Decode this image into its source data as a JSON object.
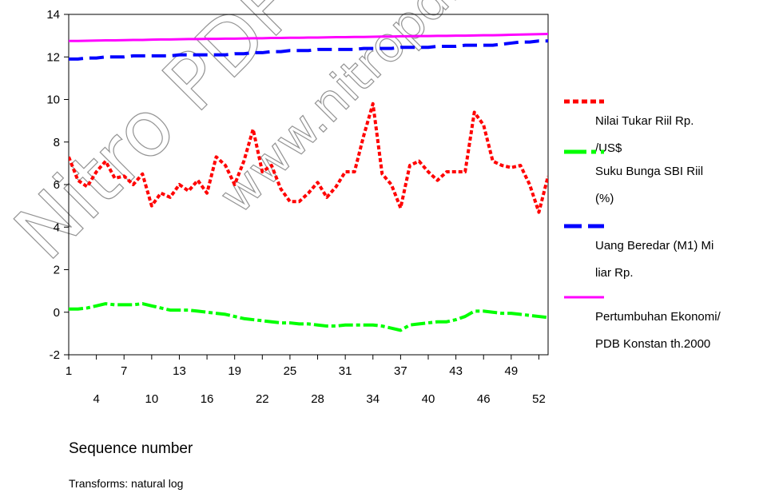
{
  "chart_data": {
    "type": "line",
    "x": [
      1,
      2,
      3,
      4,
      5,
      6,
      7,
      8,
      9,
      10,
      11,
      12,
      13,
      14,
      15,
      16,
      17,
      18,
      19,
      20,
      21,
      22,
      23,
      24,
      25,
      26,
      27,
      28,
      29,
      30,
      31,
      32,
      33,
      34,
      35,
      36,
      37,
      38,
      39,
      40,
      41,
      42,
      43,
      44,
      45,
      46,
      47,
      48,
      49,
      50,
      51,
      52,
      53
    ],
    "x_ticks_row1": [
      1,
      7,
      13,
      19,
      25,
      31,
      37,
      43,
      49
    ],
    "x_ticks_row2": [
      4,
      10,
      16,
      22,
      28,
      34,
      40,
      46,
      52
    ],
    "xlabel": "Sequence number",
    "ylim": [
      -2,
      14
    ],
    "y_ticks": [
      -2,
      0,
      2,
      4,
      6,
      8,
      10,
      12,
      14
    ],
    "note": "Transforms: natural log",
    "series": [
      {
        "name": "Nilai Tukar Riil Rp. /US$",
        "name_lines": [
          "Nilai Tukar Riil Rp.",
          "/US$"
        ],
        "color": "#ff0000",
        "style": "dotted",
        "values": [
          7.3,
          6.2,
          5.9,
          6.6,
          7.1,
          6.3,
          6.4,
          6.0,
          6.5,
          5.0,
          5.6,
          5.4,
          6.0,
          5.7,
          6.2,
          5.6,
          7.3,
          6.9,
          6.0,
          7.1,
          8.6,
          6.6,
          6.9,
          5.8,
          5.2,
          5.2,
          5.6,
          6.1,
          5.4,
          5.9,
          6.6,
          6.6,
          8.3,
          9.8,
          6.5,
          6.0,
          4.9,
          6.9,
          7.1,
          6.6,
          6.2,
          6.6,
          6.6,
          6.6,
          9.4,
          8.8,
          7.1,
          6.9,
          6.8,
          6.9,
          6.0,
          4.7,
          6.4
        ]
      },
      {
        "name": "Suku Bunga SBI Riil (%)",
        "name_lines": [
          "Suku Bunga SBI Riil",
          "(%)"
        ],
        "color": "#00ff00",
        "style": "dash-dot",
        "values": [
          0.15,
          0.15,
          0.2,
          0.3,
          0.4,
          0.35,
          0.35,
          0.35,
          0.4,
          0.3,
          0.2,
          0.1,
          0.1,
          0.1,
          0.05,
          0.0,
          -0.05,
          -0.1,
          -0.2,
          -0.3,
          -0.35,
          -0.4,
          -0.45,
          -0.5,
          -0.5,
          -0.55,
          -0.55,
          -0.6,
          -0.65,
          -0.65,
          -0.6,
          -0.6,
          -0.6,
          -0.6,
          -0.65,
          -0.75,
          -0.85,
          -0.6,
          -0.55,
          -0.5,
          -0.45,
          -0.45,
          -0.35,
          -0.2,
          0.05,
          0.05,
          0.0,
          -0.05,
          -0.05,
          -0.1,
          -0.15,
          -0.2,
          -0.25
        ]
      },
      {
        "name": "Uang Beredar (M1) Miliar Rp.",
        "name_lines": [
          "Uang Beredar (M1) Mi",
          "liar Rp."
        ],
        "color": "#0000ff",
        "style": "dashed",
        "values": [
          11.9,
          11.9,
          11.95,
          11.95,
          12.0,
          12.0,
          12.0,
          12.05,
          12.05,
          12.05,
          12.05,
          12.05,
          12.1,
          12.1,
          12.1,
          12.1,
          12.1,
          12.1,
          12.15,
          12.15,
          12.2,
          12.2,
          12.25,
          12.25,
          12.3,
          12.3,
          12.3,
          12.35,
          12.35,
          12.35,
          12.35,
          12.35,
          12.4,
          12.4,
          12.4,
          12.4,
          12.45,
          12.45,
          12.45,
          12.45,
          12.5,
          12.5,
          12.5,
          12.55,
          12.55,
          12.55,
          12.55,
          12.6,
          12.65,
          12.7,
          12.7,
          12.75,
          12.75
        ]
      },
      {
        "name": "Pertumbuhan Ekonomi/ PDB Konstan th.2000",
        "name_lines": [
          "Pertumbuhan Ekonomi/",
          "PDB Konstan th.2000"
        ],
        "color": "#ff00ff",
        "style": "solid",
        "values": [
          12.75,
          12.75,
          12.76,
          12.77,
          12.78,
          12.78,
          12.79,
          12.8,
          12.8,
          12.81,
          12.82,
          12.82,
          12.83,
          12.84,
          12.84,
          12.85,
          12.85,
          12.86,
          12.86,
          12.87,
          12.88,
          12.88,
          12.89,
          12.89,
          12.9,
          12.9,
          12.91,
          12.91,
          12.92,
          12.93,
          12.93,
          12.94,
          12.94,
          12.95,
          12.96,
          12.96,
          12.97,
          12.97,
          12.98,
          12.98,
          12.99,
          12.99,
          13.0,
          13.0,
          13.01,
          13.02,
          13.02,
          13.03,
          13.04,
          13.05,
          13.06,
          13.07,
          13.08
        ]
      }
    ]
  },
  "watermark": {
    "text1": "Nitro PDF",
    "text2": "www.nitropdf"
  }
}
